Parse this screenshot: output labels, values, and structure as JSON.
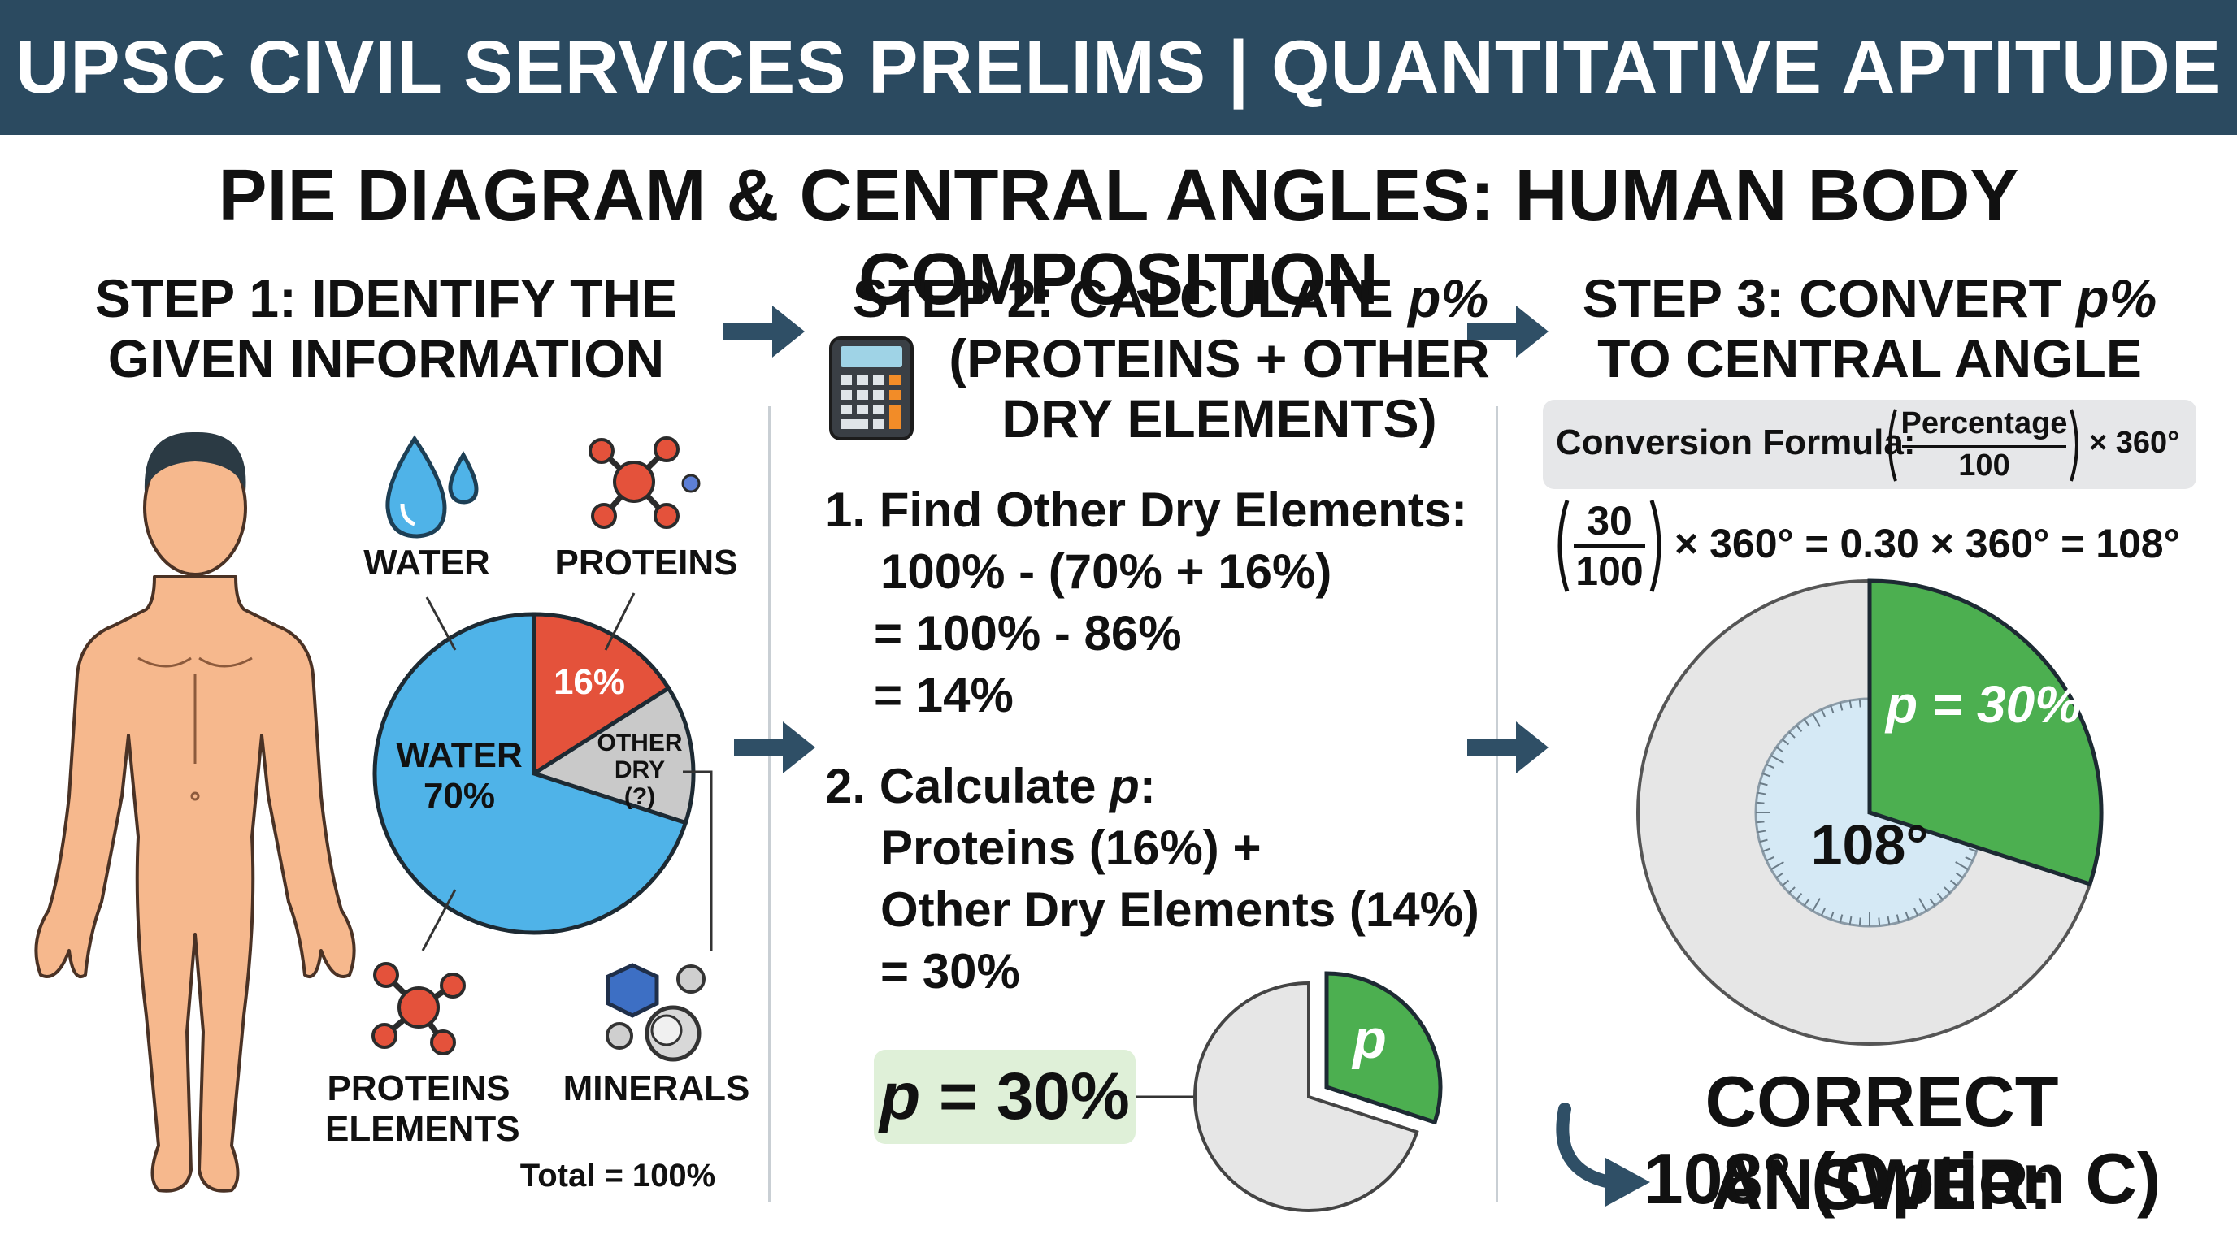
{
  "header": {
    "banner": "UPSC CIVIL SERVICES PRELIMS | QUANTITATIVE APTITUDE",
    "subtitle": "PIE DIAGRAM & CENTRAL ANGLES: HUMAN BODY COMPOSITION"
  },
  "step1": {
    "title_line1": "STEP 1: IDENTIFY THE",
    "title_line2": "GIVEN INFORMATION",
    "labels": {
      "water": "WATER",
      "proteins": "PROTEINS",
      "proteins_elements_1": "PROTEINS",
      "proteins_elements_2": "ELEMENTS",
      "minerals": "MINERALS",
      "total": "Total = 100%"
    },
    "pie_labels": {
      "water_1": "WATER",
      "water_2": "70%",
      "proteins": "16%",
      "other_1": "OTHER",
      "other_2": "DRY",
      "other_3": "(?)"
    }
  },
  "step2": {
    "title_line1": "STEP 2: CALCULATE",
    "title_var": "p%",
    "title_line2": "(PROTEINS + OTHER",
    "title_line3": "DRY ELEMENTS)",
    "part1": {
      "heading": "1. Find Other Dry Elements:",
      "line1": "100% - (70% + 16%)",
      "line2": "= 100% - 86%",
      "line3": "= 14%"
    },
    "part2": {
      "heading": "2. Calculate ",
      "heading_var": "p",
      "heading_end": ":",
      "line1": "Proteins (16%) +",
      "line2": "Other Dry Elements (14%)",
      "line3": "= 30%"
    },
    "result_var": "p",
    "result_value": " = 30%",
    "slice_label": "p"
  },
  "step3": {
    "title_line1": "STEP 3: CONVERT",
    "title_var": "p%",
    "title_line2": "TO CENTRAL ANGLE",
    "formula_label": "Conversion Formula:",
    "formula_numerator": "Percentage",
    "formula_denominator": "100",
    "formula_tail": "× 360°",
    "calc_numerator": "30",
    "calc_denominator": "100",
    "calc_tail": "× 360° = 0.30 × 360° = 108°",
    "slice_label": "p = 30%",
    "angle_label": "108°",
    "answer_line1": "CORRECT ANSWER:",
    "answer_line2": "108° (Option C)"
  },
  "chart_data": {
    "type": "pie",
    "categories": [
      "WATER",
      "PROTEINS",
      "OTHER DRY"
    ],
    "values": [
      70,
      16,
      14
    ],
    "unit": "%"
  },
  "colors": {
    "banner": "#2b4a60",
    "water": "#4fb3e8",
    "proteins": "#e4523b",
    "other": "#c9c9c9",
    "p_slice": "#4caf50",
    "arrow": "#2f4f66",
    "skin": "#f6b88d"
  },
  "icons": [
    "water-drop-icon",
    "protein-molecule-icon",
    "mineral-icon",
    "calculator-icon",
    "human-body-icon",
    "arrow-icon"
  ]
}
